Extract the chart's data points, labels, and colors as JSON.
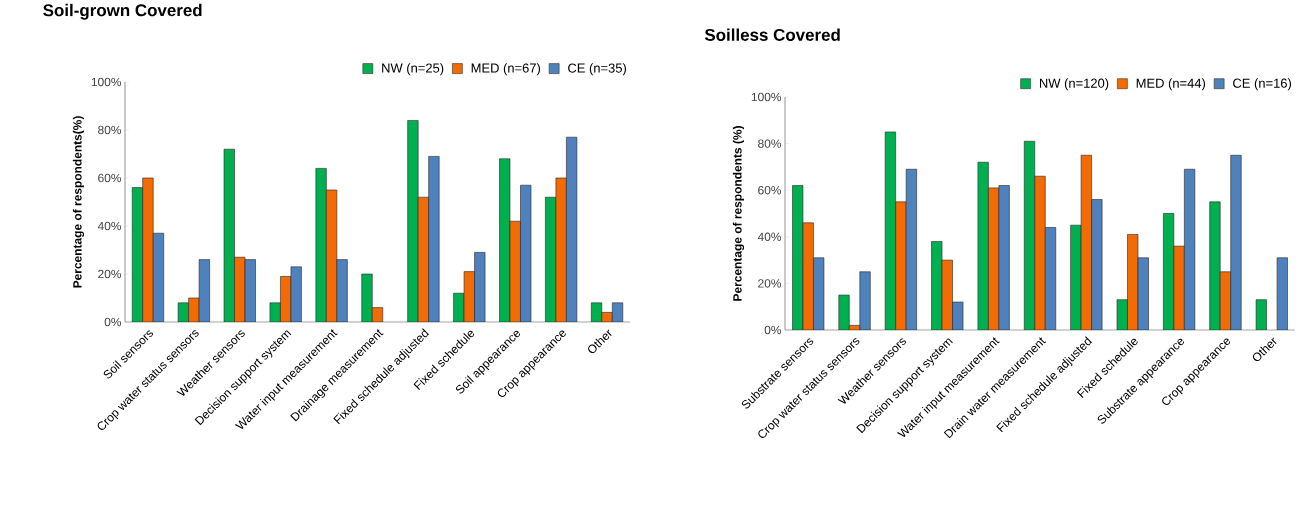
{
  "chart_data": [
    {
      "type": "bar",
      "title": "Soil-grown Covered",
      "ylabel": "Percentage of respondents(%)",
      "categories": [
        "Soil sensors",
        "Crop water status sensors",
        "Weather sensors",
        "Decision support system",
        "Water input measurement",
        "Drainage measurement",
        "Fixed schedule adjusted",
        "Fixed schedule",
        "Soil appearance",
        "Crop appearance",
        "Other"
      ],
      "series": [
        {
          "name": "NW (n=25)",
          "color": "#00b050",
          "values": [
            56,
            8,
            72,
            8,
            64,
            20,
            84,
            12,
            68,
            52,
            8
          ]
        },
        {
          "name": "MED (n=67)",
          "color": "#f26b05",
          "values": [
            60,
            10,
            27,
            19,
            55,
            6,
            52,
            21,
            42,
            60,
            4
          ]
        },
        {
          "name": "CE (n=35)",
          "color": "#4f81bd",
          "values": [
            37,
            26,
            26,
            23,
            26,
            null,
            69,
            29,
            57,
            77,
            8
          ]
        }
      ],
      "ylim": [
        0,
        100
      ],
      "yticks": [
        {
          "value": 0,
          "label": "0%"
        },
        {
          "value": 20,
          "label": "20%"
        },
        {
          "value": 40,
          "label": "40%"
        },
        {
          "value": 60,
          "label": "60%"
        },
        {
          "value": 80,
          "label": "80%"
        },
        {
          "value": 100,
          "label": "100%"
        }
      ],
      "legend": "top right"
    },
    {
      "type": "bar",
      "title": "Soilless Covered",
      "ylabel": "Percentage of respondents (%)",
      "categories": [
        "Substrate sensors",
        "Crop water status sensors",
        "Weather sensors",
        "Decision support system",
        "Water input measurement",
        "Drain water measurement",
        "Fixed schedule adjusted",
        "Fixed schedule",
        "Substrate appearance",
        "Crop appearance",
        "Other"
      ],
      "series": [
        {
          "name": "NW (n=120)",
          "color": "#00b050",
          "values": [
            62,
            15,
            85,
            38,
            72,
            81,
            45,
            13,
            50,
            55,
            13
          ]
        },
        {
          "name": "MED (n=44)",
          "color": "#f26b05",
          "values": [
            46,
            2,
            55,
            30,
            61,
            66,
            75,
            41,
            36,
            25,
            null
          ]
        },
        {
          "name": "CE (n=16)",
          "color": "#4f81bd",
          "values": [
            31,
            25,
            69,
            12,
            62,
            44,
            56,
            31,
            69,
            75,
            31
          ]
        }
      ],
      "ylim": [
        0,
        100
      ],
      "yticks": [
        {
          "value": 0,
          "label": "0%"
        },
        {
          "value": 20,
          "label": "20%"
        },
        {
          "value": 40,
          "label": "40%"
        },
        {
          "value": 60,
          "label": "60%"
        },
        {
          "value": 80,
          "label": "80%"
        },
        {
          "value": 100,
          "label": "100%"
        }
      ],
      "legend": "top right"
    }
  ]
}
